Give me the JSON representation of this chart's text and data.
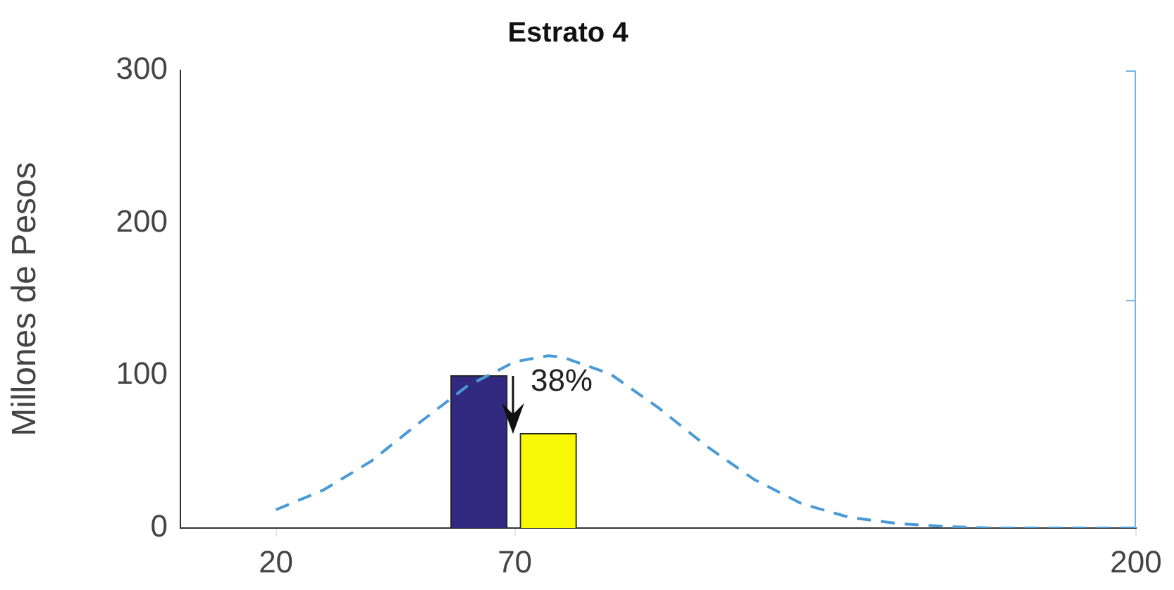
{
  "chart_data": {
    "type": "bar",
    "title": "Estrato 4",
    "ylabel": "Millones de Pesos",
    "x": [
      62.5,
      77
    ],
    "values": [
      100,
      62
    ],
    "colors": [
      "#312a80",
      "#f7f706"
    ],
    "series": [
      {
        "type": "line",
        "color": "#4a9ad6",
        "line_style": "dashed",
        "marker": "none",
        "x": [
          20,
          30,
          40,
          50,
          60,
          70,
          77,
          80,
          90,
          100,
          110,
          120,
          130,
          140,
          150,
          160,
          170,
          180,
          190,
          200
        ],
        "values": [
          12,
          25,
          44,
          69,
          93,
          109,
          113,
          112,
          101,
          79,
          54,
          32,
          16,
          7,
          3,
          1,
          0,
          0,
          0,
          0
        ]
      }
    ],
    "xlim": [
      0,
      200
    ],
    "xticks": [
      20,
      70,
      200
    ],
    "ylim": [
      0,
      300
    ],
    "yticks": [
      0,
      100,
      200,
      300
    ],
    "annotations": [
      "38%"
    ],
    "grid": false,
    "legend": false
  }
}
